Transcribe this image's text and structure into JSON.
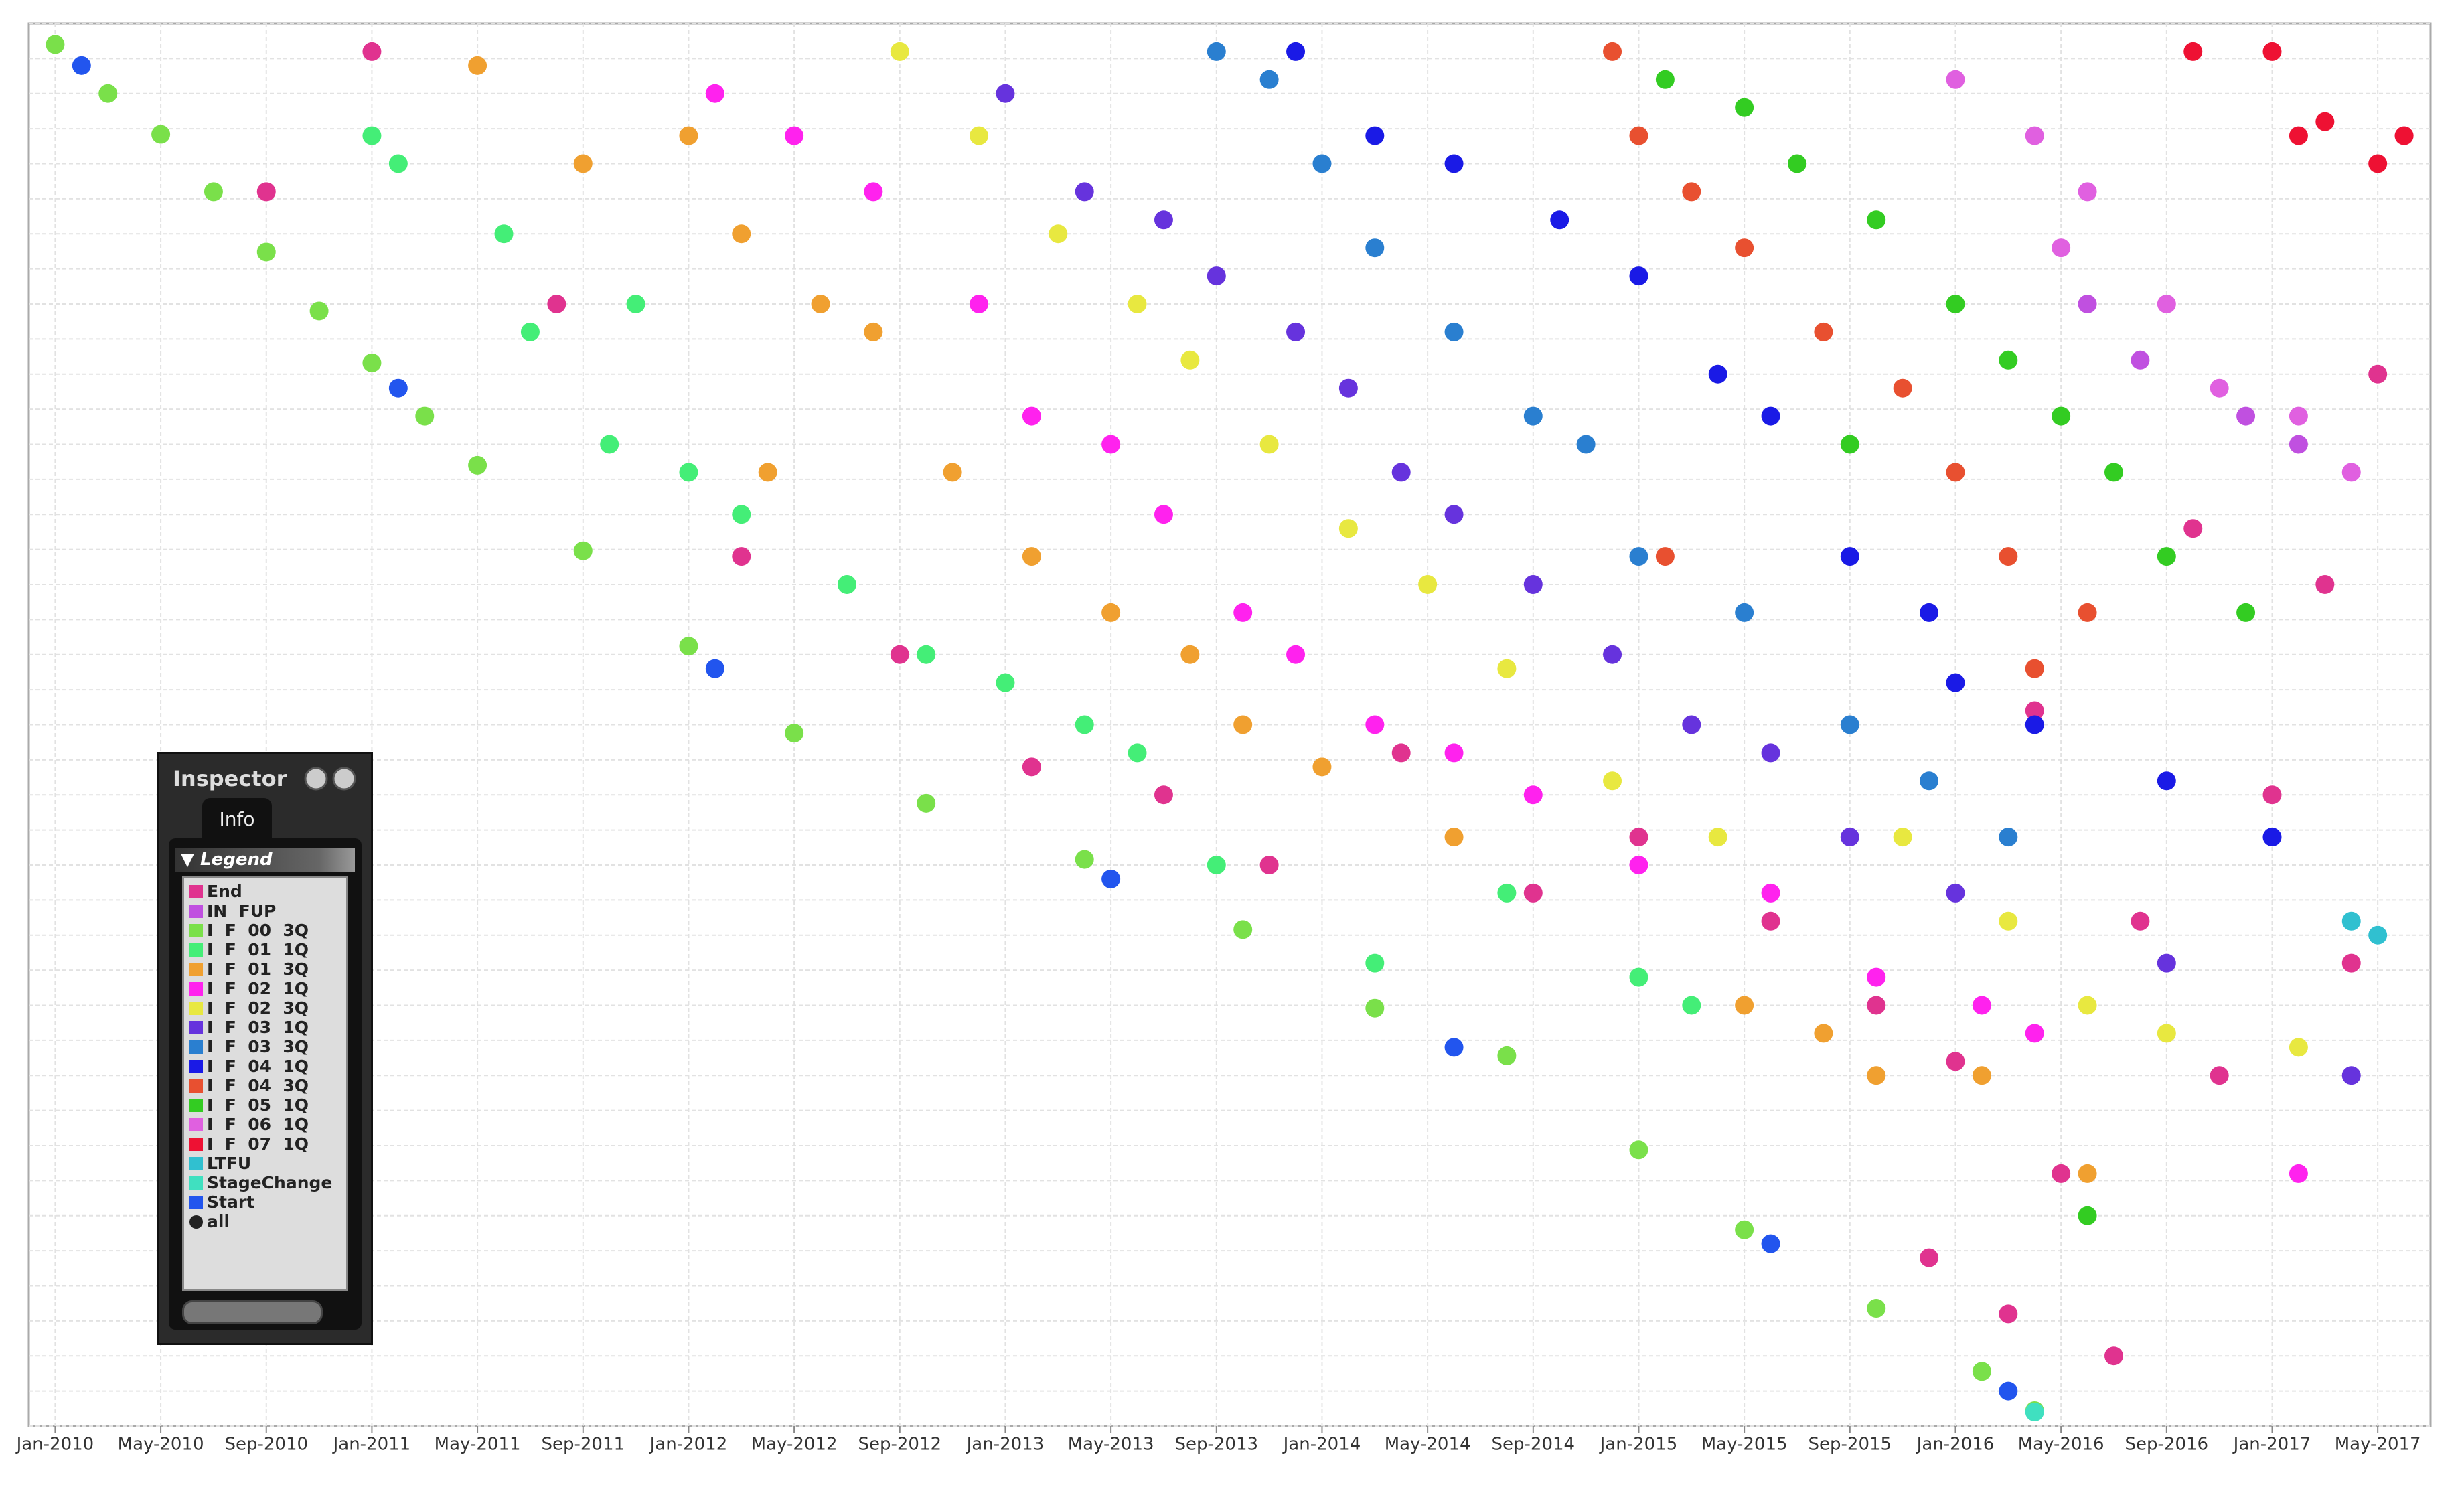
{
  "chart_data": {
    "type": "scatter",
    "xlim": [
      "2009-12",
      "2017-07"
    ],
    "ylim": [
      0,
      100
    ],
    "xticks": [
      {
        "value": "2010-01",
        "label": "Jan-2010"
      },
      {
        "value": "2010-05",
        "label": "May-2010"
      },
      {
        "value": "2010-09",
        "label": "Sep-2010"
      },
      {
        "value": "2011-01",
        "label": "Jan-2011"
      },
      {
        "value": "2011-05",
        "label": "May-2011"
      },
      {
        "value": "2011-09",
        "label": "Sep-2011"
      },
      {
        "value": "2012-01",
        "label": "Jan-2012"
      },
      {
        "value": "2012-05",
        "label": "May-2012"
      },
      {
        "value": "2012-09",
        "label": "Sep-2012"
      },
      {
        "value": "2013-01",
        "label": "Jan-2013"
      },
      {
        "value": "2013-05",
        "label": "May-2013"
      },
      {
        "value": "2013-09",
        "label": "Sep-2013"
      },
      {
        "value": "2014-01",
        "label": "Jan-2014"
      },
      {
        "value": "2014-05",
        "label": "May-2014"
      },
      {
        "value": "2014-09",
        "label": "Sep-2014"
      },
      {
        "value": "2015-01",
        "label": "Jan-2015"
      },
      {
        "value": "2015-05",
        "label": "May-2015"
      },
      {
        "value": "2015-09",
        "label": "Sep-2015"
      },
      {
        "value": "2016-01",
        "label": "Jan-2016"
      },
      {
        "value": "2016-05",
        "label": "May-2016"
      },
      {
        "value": "2016-09",
        "label": "Sep-2016"
      },
      {
        "value": "2017-01",
        "label": "Jan-2017"
      },
      {
        "value": "2017-05",
        "label": "May-2017"
      }
    ],
    "yticks": [
      0,
      2.5,
      5,
      7.5,
      10,
      12.5,
      15,
      17.5,
      20,
      22.5,
      25,
      27.5,
      30,
      32.5,
      35,
      37.5,
      40,
      42.5,
      45,
      47.5,
      50,
      52.5,
      55,
      57.5,
      60,
      62.5,
      65,
      67.5,
      70,
      72.5,
      75,
      77.5,
      80,
      82.5,
      85,
      87.5,
      90,
      92.5,
      95,
      97.5,
      100
    ],
    "grid": true,
    "series": [
      {
        "name": "End",
        "color": "#e0338f",
        "x": [
          "2010-09",
          "2011-01",
          "2011-08",
          "2012-03",
          "2012-09",
          "2013-02",
          "2013-07",
          "2013-11",
          "2014-04",
          "2014-09",
          "2015-01",
          "2015-06",
          "2015-10",
          "2016-01",
          "2016-03",
          "2016-05",
          "2016-08",
          "2016-11",
          "2017-01",
          "2017-03",
          "2017-05",
          "2017-06",
          "2016-07",
          "2015-12",
          "2016-10",
          "2017-04",
          "2016-04"
        ],
        "values": [
          88,
          98,
          80,
          62,
          55,
          47,
          45,
          40,
          48,
          38,
          42,
          36,
          30,
          26,
          8,
          18,
          36,
          25,
          45,
          60,
          75,
          92,
          5,
          12,
          64,
          33,
          51
        ]
      },
      {
        "name": "IN  FUP",
        "color": "#c050e0",
        "x": [
          "2016-06",
          "2016-08",
          "2016-12",
          "2017-02"
        ],
        "values": [
          80,
          76,
          72,
          70
        ]
      },
      {
        "name": "I  F  00  3Q",
        "color": "#7ae04a",
        "x": [
          "2010-01",
          "2010-03",
          "2010-05",
          "2010-07",
          "2010-09",
          "2010-11",
          "2011-01",
          "2011-03",
          "2011-05",
          "2011-09",
          "2012-01",
          "2012-05",
          "2012-10",
          "2013-04",
          "2013-10",
          "2014-03",
          "2014-08",
          "2015-01",
          "2015-05",
          "2015-10",
          "2016-02",
          "2016-04"
        ],
        "values": [
          98.5,
          95,
          92.1,
          88,
          83.7,
          79.5,
          75.8,
          72,
          68.5,
          62.4,
          55.6,
          49.4,
          44.4,
          40.4,
          35.4,
          29.8,
          26.4,
          19.7,
          14,
          8.4,
          3.9,
          1.1
        ]
      },
      {
        "name": "I  F  01  1Q",
        "color": "#44ee77",
        "x": [
          "2011-02",
          "2011-06",
          "2011-10",
          "2012-01",
          "2012-03",
          "2011-11",
          "2012-07",
          "2012-10",
          "2013-01",
          "2013-04",
          "2013-06",
          "2013-09",
          "2014-03",
          "2014-08",
          "2015-01",
          "2015-03",
          "2011-01",
          "2011-07"
        ],
        "values": [
          90,
          85,
          70,
          68,
          65,
          80,
          60,
          55,
          53,
          50,
          48,
          40,
          33,
          38,
          32,
          30,
          92,
          78
        ]
      },
      {
        "name": "I  F  01  3Q",
        "color": "#f0a030",
        "x": [
          "2011-05",
          "2011-09",
          "2012-01",
          "2012-03",
          "2012-06",
          "2012-08",
          "2012-04",
          "2012-11",
          "2013-02",
          "2013-05",
          "2013-08",
          "2013-10",
          "2014-01",
          "2014-06",
          "2015-05",
          "2015-08",
          "2015-10",
          "2016-02",
          "2016-06"
        ],
        "values": [
          97,
          90,
          92,
          85,
          80,
          78,
          68,
          68,
          62,
          58,
          55,
          50,
          47,
          42,
          30,
          28,
          25,
          25,
          18
        ]
      },
      {
        "name": "I  F  02  1Q",
        "color": "#ff22ee",
        "x": [
          "2012-02",
          "2012-05",
          "2012-08",
          "2012-12",
          "2013-02",
          "2013-05",
          "2013-07",
          "2013-10",
          "2013-12",
          "2014-03",
          "2014-06",
          "2014-09",
          "2015-01",
          "2015-06",
          "2015-10",
          "2016-02",
          "2016-04",
          "2017-02"
        ],
        "values": [
          95,
          92,
          88,
          80,
          72,
          70,
          65,
          58,
          55,
          50,
          48,
          45,
          40,
          38,
          32,
          30,
          28,
          18
        ]
      },
      {
        "name": "I  F  02  3Q",
        "color": "#e8e840",
        "x": [
          "2012-09",
          "2012-12",
          "2013-03",
          "2013-06",
          "2013-08",
          "2013-11",
          "2014-02",
          "2014-05",
          "2014-08",
          "2014-12",
          "2015-04",
          "2015-11",
          "2016-03",
          "2016-06",
          "2016-09",
          "2017-02"
        ],
        "values": [
          98,
          92,
          85,
          80,
          76,
          70,
          64,
          60,
          54,
          46,
          42,
          42,
          36,
          30,
          28,
          27
        ]
      },
      {
        "name": "I  F  03  1Q",
        "color": "#6633dd",
        "x": [
          "2013-01",
          "2013-04",
          "2013-07",
          "2013-09",
          "2013-12",
          "2014-02",
          "2014-04",
          "2014-06",
          "2014-09",
          "2014-12",
          "2015-03",
          "2015-06",
          "2015-09",
          "2016-01",
          "2016-09",
          "2017-04"
        ],
        "values": [
          95,
          88,
          86,
          82,
          78,
          74,
          68,
          65,
          60,
          55,
          50,
          48,
          42,
          38,
          33,
          25
        ]
      },
      {
        "name": "I  F  03  3Q",
        "color": "#2a7fd0",
        "x": [
          "2013-09",
          "2013-11",
          "2014-01",
          "2014-03",
          "2014-06",
          "2014-09",
          "2014-11",
          "2015-01",
          "2015-05",
          "2015-09",
          "2015-12",
          "2016-03"
        ],
        "values": [
          98,
          96,
          90,
          84,
          78,
          72,
          70,
          62,
          58,
          50,
          46,
          42
        ]
      },
      {
        "name": "I  F  04  1Q",
        "color": "#1a1ae6",
        "x": [
          "2013-12",
          "2014-03",
          "2014-06",
          "2014-10",
          "2015-01",
          "2015-04",
          "2015-06",
          "2015-09",
          "2015-12",
          "2016-01",
          "2016-04",
          "2016-09",
          "2017-01"
        ],
        "values": [
          98,
          92,
          90,
          86,
          82,
          75,
          72,
          62,
          58,
          53,
          50,
          46,
          42
        ]
      },
      {
        "name": "I  F  04  3Q",
        "color": "#e85030",
        "x": [
          "2014-12",
          "2015-01",
          "2015-03",
          "2015-05",
          "2015-08",
          "2015-11",
          "2016-01",
          "2016-03",
          "2016-06",
          "2015-02",
          "2016-04"
        ],
        "values": [
          98,
          92,
          88,
          84,
          78,
          74,
          68,
          62,
          58,
          62,
          54
        ]
      },
      {
        "name": "I  F  05  1Q",
        "color": "#33cc22",
        "x": [
          "2015-02",
          "2015-05",
          "2015-07",
          "2015-10",
          "2016-01",
          "2016-03",
          "2016-05",
          "2016-07",
          "2016-09",
          "2016-12",
          "2015-09",
          "2016-06"
        ],
        "values": [
          96,
          94,
          90,
          86,
          80,
          76,
          72,
          68,
          62,
          58,
          70,
          15
        ]
      },
      {
        "name": "I  F  06  1Q",
        "color": "#e060e0",
        "x": [
          "2016-01",
          "2016-04",
          "2016-06",
          "2016-09",
          "2016-11",
          "2017-02",
          "2017-04",
          "2016-05"
        ],
        "values": [
          96,
          92,
          88,
          80,
          74,
          72,
          68,
          84
        ]
      },
      {
        "name": "I  F  07  1Q",
        "color": "#ee1133",
        "x": [
          "2017-01",
          "2017-02",
          "2017-03",
          "2017-05",
          "2017-06",
          "2016-10"
        ],
        "values": [
          98,
          92,
          93,
          90,
          92,
          98
        ]
      },
      {
        "name": "LTFU",
        "color": "#30c0d0",
        "x": [
          "2017-04",
          "2017-05"
        ],
        "values": [
          36,
          35
        ]
      },
      {
        "name": "StageChange",
        "color": "#40e0c0",
        "x": [
          "2016-04"
        ],
        "values": [
          1
        ]
      },
      {
        "name": "Start",
        "color": "#2255ee",
        "x": [
          "2010-02",
          "2011-02",
          "2012-02",
          "2013-05",
          "2014-06",
          "2015-06",
          "2016-03"
        ],
        "values": [
          97,
          74,
          54,
          39,
          27,
          13,
          2.5
        ]
      },
      {
        "name": "all",
        "color": "#222222",
        "marker": "circle",
        "x": [],
        "values": []
      }
    ]
  },
  "inspector": {
    "title": "Inspector",
    "tab": "Info",
    "section": "Legend"
  }
}
